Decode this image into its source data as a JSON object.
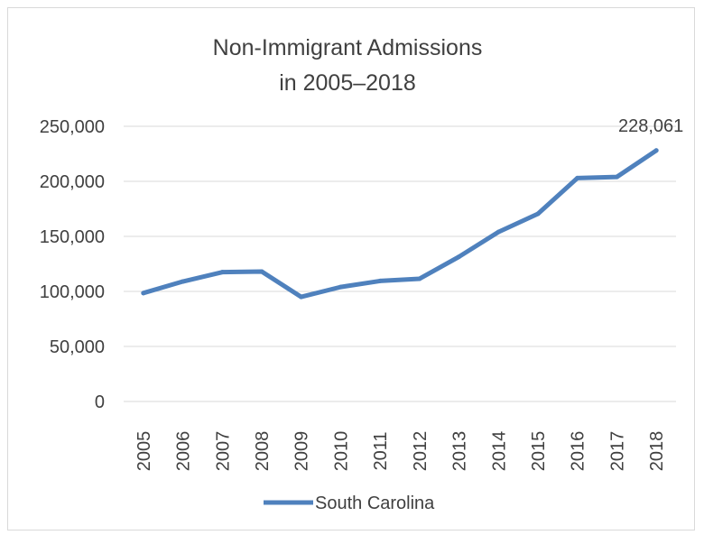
{
  "chart_data": {
    "type": "line",
    "title_lines": [
      "Non-Immigrant Admissions",
      "in 2005–2018"
    ],
    "xlabel": "",
    "ylabel": "",
    "categories": [
      "2005",
      "2006",
      "2007",
      "2008",
      "2009",
      "2010",
      "2011",
      "2012",
      "2013",
      "2014",
      "2015",
      "2016",
      "2017",
      "2018"
    ],
    "series": [
      {
        "name": "South Carolina",
        "color": "#4f81bd",
        "values": [
          98500,
          109000,
          117500,
          118000,
          95000,
          104000,
          109500,
          111500,
          131500,
          154000,
          170500,
          203000,
          204000,
          228061
        ]
      }
    ],
    "ylim": [
      0,
      250000
    ],
    "yticks": [
      0,
      50000,
      100000,
      150000,
      200000,
      250000
    ],
    "ytick_labels": [
      "0",
      "50,000",
      "100,000",
      "150,000",
      "200,000",
      "250,000"
    ],
    "data_labels": [
      {
        "series": 0,
        "index": 13,
        "text": "228,061"
      }
    ],
    "grid": true,
    "legend_position": "bottom"
  }
}
